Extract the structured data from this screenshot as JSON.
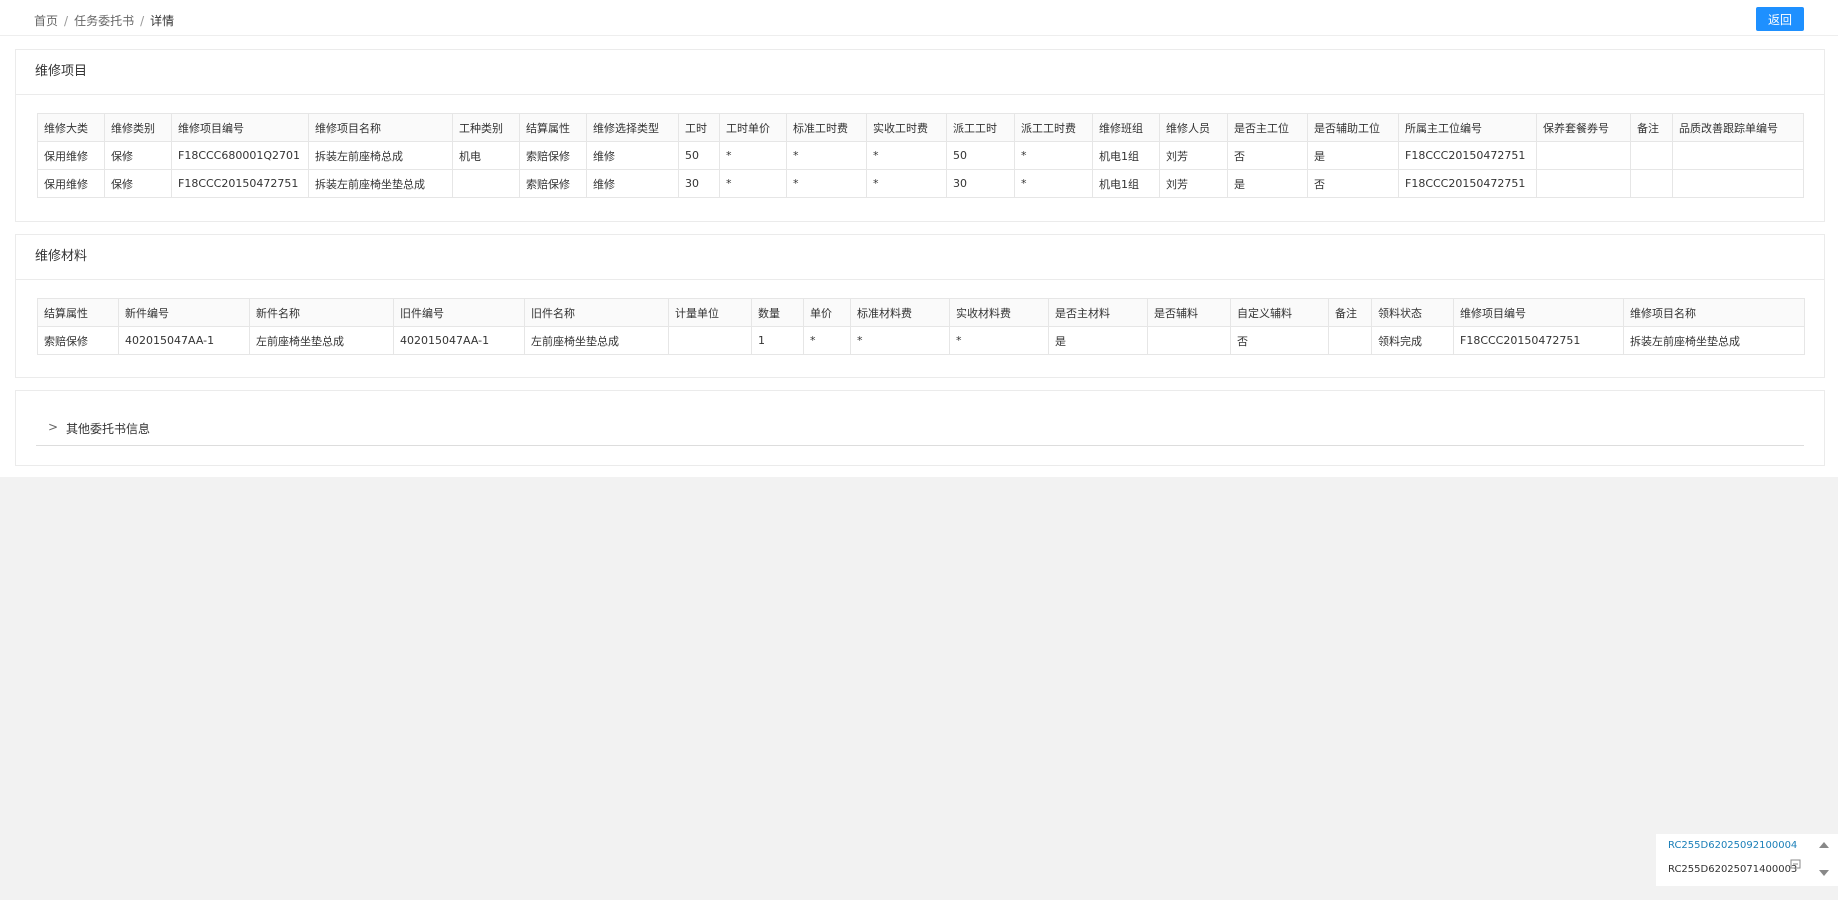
{
  "breadcrumb": [
    "首页",
    "任务委托书",
    "详情"
  ],
  "back_button": "返回",
  "repair_items": {
    "title": "维修项目",
    "headers": [
      "维修大类",
      "维修类别",
      "维修项目编号",
      "维修项目名称",
      "工种类别",
      "结算属性",
      "维修选择类型",
      "工时",
      "工时单价",
      "标准工时费",
      "实收工时费",
      "派工工时",
      "派工工时费",
      "维修班组",
      "维修人员",
      "是否主工位",
      "是否辅助工位",
      "所属主工位编号",
      "保养套餐券号",
      "备注",
      "品质改善跟踪单编号"
    ],
    "rows": [
      [
        "保用维修",
        "保修",
        "F18CCC680001Q2701",
        "拆装左前座椅总成",
        "机电",
        "索赔保修",
        "维修",
        50,
        "*",
        "*",
        "*",
        50,
        "*",
        "机电1组",
        "刘芳",
        "否",
        "是",
        "F18CCC20150472751",
        null,
        null,
        null
      ],
      [
        "保用维修",
        "保修",
        "F18CCC20150472751",
        "拆装左前座椅坐垫总成",
        null,
        "索赔保修",
        "维修",
        30,
        "*",
        "*",
        "*",
        30,
        "*",
        "机电1组",
        "刘芳",
        "是",
        "否",
        "F18CCC20150472751",
        null,
        null,
        null
      ]
    ]
  },
  "repair_materials": {
    "title": "维修材料",
    "headers": [
      "结算属性",
      "新件编号",
      "新件名称",
      "旧件编号",
      "旧件名称",
      "计量单位",
      "数量",
      "单价",
      "标准材料费",
      "实收材料费",
      "是否主材料",
      "是否辅料",
      "自定义辅料",
      "备注",
      "领料状态",
      "维修项目编号",
      "维修项目名称"
    ],
    "rows": [
      [
        "索赔保修",
        "402015047AA-1",
        "左前座椅坐垫总成",
        "402015047AA-1",
        "左前座椅坐垫总成",
        null,
        1,
        "*",
        "*",
        "*",
        "是",
        null,
        "否",
        null,
        "领料完成",
        "F18CCC20150472751",
        "拆装左前座椅坐垫总成"
      ]
    ]
  },
  "other_info": "其他委托书信息",
  "float_list": [
    "RC255D62025092100004",
    "RC255D62025071400003"
  ]
}
